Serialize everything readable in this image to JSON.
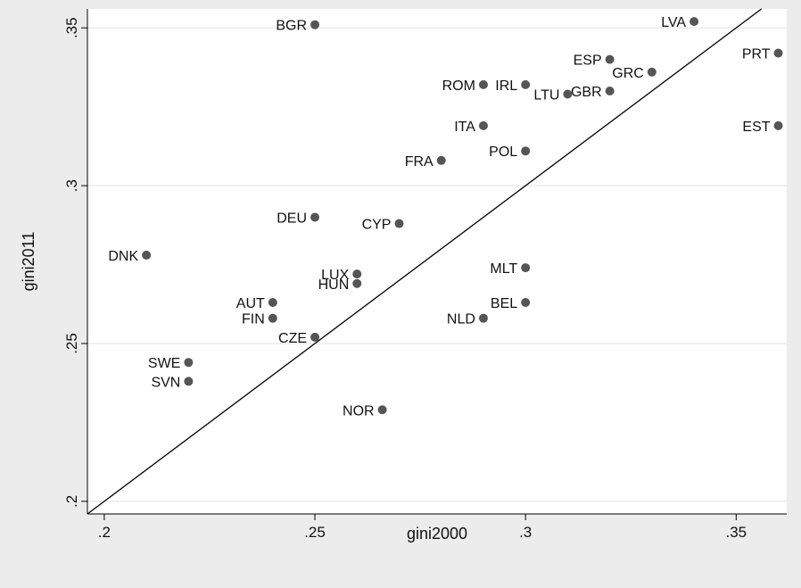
{
  "chart_data": {
    "type": "scatter",
    "xlabel": "gini2000",
    "ylabel": "gini2011",
    "xlim": [
      0.196,
      0.362
    ],
    "ylim": [
      0.196,
      0.356
    ],
    "x_ticks": [
      {
        "value": 0.2,
        "label": ".2"
      },
      {
        "value": 0.25,
        "label": ".25"
      },
      {
        "value": 0.3,
        "label": ".3"
      },
      {
        "value": 0.35,
        "label": ".35"
      }
    ],
    "y_ticks": [
      {
        "value": 0.2,
        "label": ".2"
      },
      {
        "value": 0.25,
        "label": ".25"
      },
      {
        "value": 0.3,
        "label": ".3"
      },
      {
        "value": 0.35,
        "label": ".35"
      }
    ],
    "grid": "horizontal",
    "reference_line": {
      "from": [
        0.196,
        0.196
      ],
      "to": [
        0.356,
        0.356
      ]
    },
    "colors": {
      "page": "#ececec",
      "plot": "#ffffff",
      "marker": "#555555",
      "text": "#111111",
      "line": "#000000",
      "grid": "#e2e2e2"
    },
    "points": [
      {
        "label": "BGR",
        "x": 0.25,
        "y": 0.351
      },
      {
        "label": "LVA",
        "x": 0.34,
        "y": 0.352
      },
      {
        "label": "PRT",
        "x": 0.36,
        "y": 0.342
      },
      {
        "label": "ESP",
        "x": 0.32,
        "y": 0.34
      },
      {
        "label": "GRC",
        "x": 0.33,
        "y": 0.336
      },
      {
        "label": "ROM",
        "x": 0.29,
        "y": 0.332
      },
      {
        "label": "IRL",
        "x": 0.3,
        "y": 0.332
      },
      {
        "label": "GBR",
        "x": 0.32,
        "y": 0.33
      },
      {
        "label": "LTU",
        "x": 0.31,
        "y": 0.329
      },
      {
        "label": "ITA",
        "x": 0.29,
        "y": 0.319
      },
      {
        "label": "EST",
        "x": 0.36,
        "y": 0.319
      },
      {
        "label": "POL",
        "x": 0.3,
        "y": 0.311
      },
      {
        "label": "FRA",
        "x": 0.28,
        "y": 0.308
      },
      {
        "label": "DEU",
        "x": 0.25,
        "y": 0.29
      },
      {
        "label": "CYP",
        "x": 0.27,
        "y": 0.288
      },
      {
        "label": "DNK",
        "x": 0.21,
        "y": 0.278
      },
      {
        "label": "MLT",
        "x": 0.3,
        "y": 0.274
      },
      {
        "label": "LUX",
        "x": 0.26,
        "y": 0.272
      },
      {
        "label": "HUN",
        "x": 0.26,
        "y": 0.269
      },
      {
        "label": "AUT",
        "x": 0.24,
        "y": 0.263
      },
      {
        "label": "BEL",
        "x": 0.3,
        "y": 0.263
      },
      {
        "label": "FIN",
        "x": 0.24,
        "y": 0.258
      },
      {
        "label": "NLD",
        "x": 0.29,
        "y": 0.258
      },
      {
        "label": "CZE",
        "x": 0.25,
        "y": 0.252
      },
      {
        "label": "SWE",
        "x": 0.22,
        "y": 0.244
      },
      {
        "label": "SVN",
        "x": 0.22,
        "y": 0.238
      },
      {
        "label": "NOR",
        "x": 0.266,
        "y": 0.229
      }
    ]
  }
}
